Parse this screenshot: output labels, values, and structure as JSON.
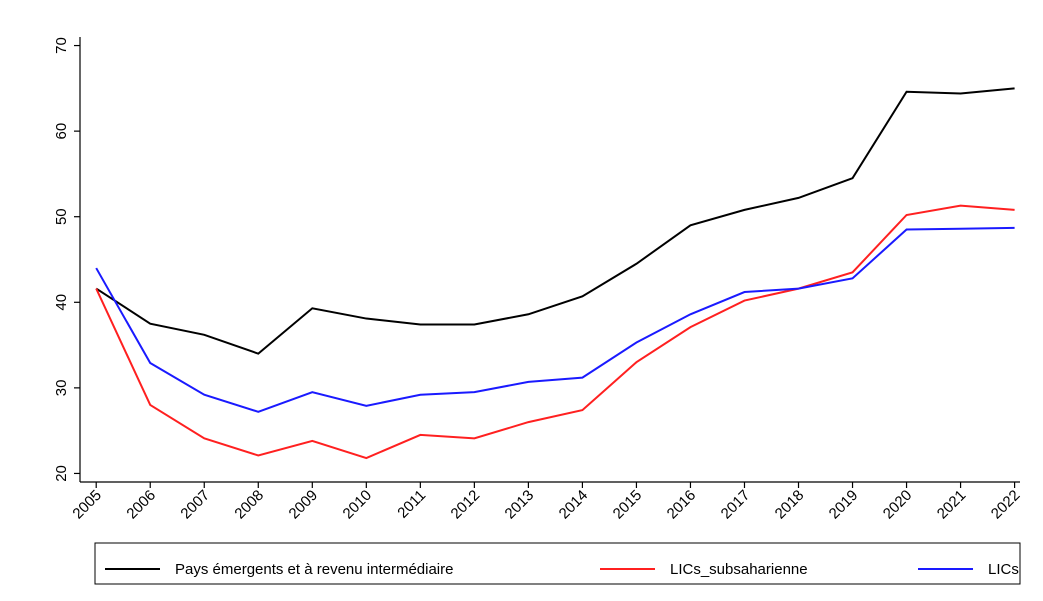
{
  "chart_data": {
    "type": "line",
    "x": [
      2005,
      2006,
      2007,
      2008,
      2009,
      2010,
      2011,
      2012,
      2013,
      2014,
      2015,
      2016,
      2017,
      2018,
      2019,
      2020,
      2021,
      2022
    ],
    "series": [
      {
        "name": "Pays émergents et à revenu intermédiaire",
        "color": "#000000",
        "values": [
          41.6,
          37.5,
          36.2,
          34.0,
          39.3,
          38.1,
          37.4,
          37.4,
          38.6,
          40.7,
          44.5,
          49.0,
          50.8,
          52.2,
          54.5,
          64.6,
          64.4,
          65.0
        ]
      },
      {
        "name": "LICs_subsaharienne",
        "color": "#ff2020",
        "values": [
          41.6,
          28.0,
          24.1,
          22.1,
          23.8,
          21.8,
          24.5,
          24.1,
          26.0,
          27.4,
          33.0,
          37.1,
          40.2,
          41.6,
          43.5,
          50.2,
          51.3,
          50.8
        ]
      },
      {
        "name": "LICs",
        "color": "#1a1aff",
        "values": [
          44.0,
          32.9,
          29.2,
          27.2,
          29.5,
          27.9,
          29.2,
          29.5,
          30.7,
          31.2,
          35.3,
          38.6,
          41.2,
          41.6,
          42.8,
          48.5,
          48.6,
          48.7
        ]
      }
    ],
    "xlim": [
      2004.7,
      2022.1
    ],
    "xticks": [
      2005,
      2006,
      2007,
      2008,
      2009,
      2010,
      2011,
      2012,
      2013,
      2014,
      2015,
      2016,
      2017,
      2018,
      2019,
      2020,
      2021,
      2022
    ],
    "ylim": [
      19,
      71
    ],
    "yticks": [
      20,
      30,
      40,
      50,
      60,
      70
    ],
    "grid": false,
    "legend": "bottom"
  }
}
